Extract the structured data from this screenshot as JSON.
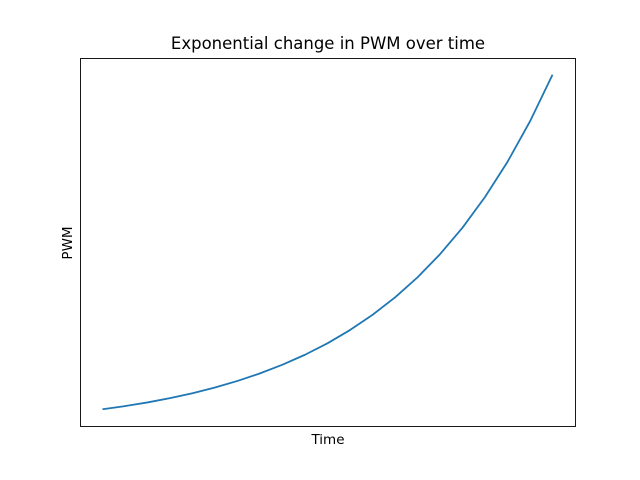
{
  "chart_data": {
    "type": "line",
    "title": "Exponential change in PWM over time",
    "xlabel": "Time",
    "ylabel": "PWM",
    "x_ticks_shown": false,
    "y_ticks_shown": false,
    "grid": false,
    "series": [
      {
        "color": "#1f77b4",
        "x": [
          0.0,
          0.05,
          0.1,
          0.15,
          0.2,
          0.25,
          0.3,
          0.35,
          0.4,
          0.45,
          0.5,
          0.55,
          0.6,
          0.65,
          0.7,
          0.75,
          0.8,
          0.85,
          0.9,
          0.95,
          1.0
        ],
        "y": [
          0.0,
          0.0036,
          0.0077,
          0.0126,
          0.0181,
          0.0245,
          0.0319,
          0.0404,
          0.0502,
          0.0614,
          0.0743,
          0.0892,
          0.1063,
          0.1259,
          0.1485,
          0.1746,
          0.2045,
          0.239,
          0.2786,
          0.3242,
          0.3767
        ]
      }
    ]
  }
}
